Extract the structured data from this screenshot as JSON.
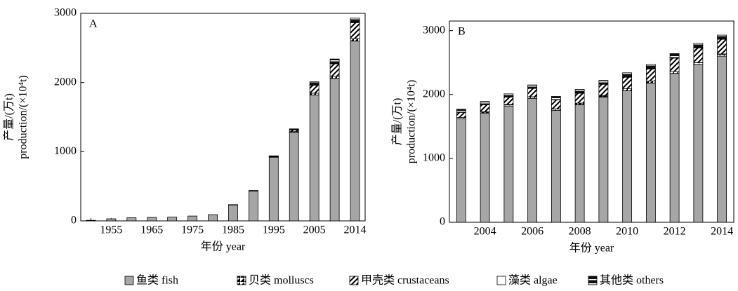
{
  "chart_data": [
    {
      "type": "bar",
      "stacked": true,
      "panel_label": "A",
      "ylabel": [
        "产量/(万t)",
        "production/(×10⁴t)"
      ],
      "xlabel": "年份 year",
      "categories": [
        null,
        "1955",
        null,
        "1965",
        null,
        "1975",
        null,
        "1985",
        null,
        "1995",
        null,
        "2005",
        null,
        "2014"
      ],
      "series": [
        {
          "name": "鱼类 fish",
          "color": "#a6a6a6",
          "values": [
            8,
            30,
            45,
            50,
            55,
            70,
            90,
            230,
            430,
            920,
            1280,
            1820,
            2060,
            2600
          ]
        },
        {
          "name": "贝类 molluscs",
          "color": "#ffffff",
          "values": [
            0,
            0,
            0,
            0,
            0,
            0,
            0,
            1,
            3,
            5,
            10,
            25,
            30,
            35
          ]
        },
        {
          "name": "甲壳类 crustaceans",
          "color": "#ffffff",
          "values": [
            0,
            0,
            0,
            0,
            0,
            0,
            0,
            1,
            3,
            8,
            25,
            115,
            180,
            230
          ]
        },
        {
          "name": "藻类 algae",
          "color": "#ffffff",
          "values": [
            0,
            0,
            0,
            0,
            0,
            0,
            0,
            0,
            1,
            1,
            2,
            5,
            5,
            5
          ]
        },
        {
          "name": "其他类 others",
          "color": "#111111",
          "values": [
            0,
            0,
            0,
            0,
            0,
            0,
            0,
            3,
            3,
            6,
            13,
            45,
            65,
            60
          ]
        }
      ],
      "ylim": [
        0,
        3000
      ],
      "yticks": [
        0,
        1000,
        2000,
        3000
      ]
    },
    {
      "type": "bar",
      "stacked": true,
      "panel_label": "B",
      "ylabel": [
        "产量/(万t)",
        "production/(×10⁴t)"
      ],
      "xlabel": "年份 year",
      "categories": [
        null,
        "2004",
        null,
        "2006",
        null,
        "2008",
        null,
        "2010",
        null,
        "2012",
        null,
        "2014"
      ],
      "series": [
        {
          "name": "鱼类 fish",
          "color": "#a6a6a6",
          "values": [
            1620,
            1710,
            1820,
            1940,
            1750,
            1840,
            1960,
            2060,
            2180,
            2330,
            2470,
            2600
          ]
        },
        {
          "name": "贝类 molluscs",
          "color": "#ffffff",
          "values": [
            20,
            20,
            25,
            25,
            25,
            25,
            25,
            30,
            30,
            30,
            30,
            35
          ]
        },
        {
          "name": "甲壳类 crustaceans",
          "color": "#ffffff",
          "values": [
            80,
            110,
            115,
            130,
            140,
            155,
            175,
            180,
            190,
            210,
            230,
            230
          ]
        },
        {
          "name": "藻类 algae",
          "color": "#ffffff",
          "values": [
            5,
            5,
            5,
            5,
            5,
            5,
            5,
            5,
            5,
            5,
            5,
            5
          ]
        },
        {
          "name": "其他类 others",
          "color": "#111111",
          "values": [
            45,
            45,
            45,
            50,
            50,
            55,
            55,
            65,
            65,
            65,
            65,
            60
          ]
        }
      ],
      "ylim": [
        0,
        3150
      ],
      "yticks": [
        0,
        1000,
        2000,
        3000
      ]
    }
  ]
}
